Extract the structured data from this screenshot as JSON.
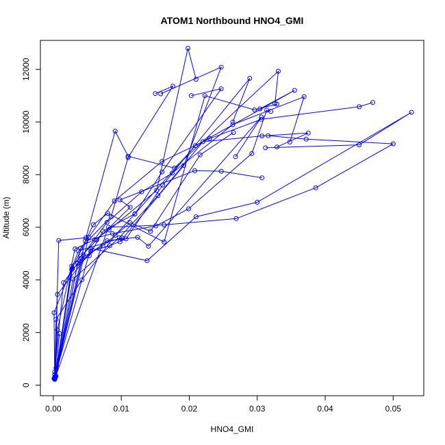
{
  "chart_data": {
    "type": "line",
    "title": "ATOM1 Northbound HNO4_GMI",
    "xlabel": "HNO4_GMI",
    "ylabel": "Altitude (m)",
    "xlim": [
      -0.0019,
      0.0545
    ],
    "ylim": [
      -400,
      13100
    ],
    "xticks": [
      0.0,
      0.01,
      0.02,
      0.03,
      0.04,
      0.05
    ],
    "xtick_labels": [
      "0.00",
      "0.01",
      "0.02",
      "0.03",
      "0.04",
      "0.05"
    ],
    "yticks": [
      0,
      2000,
      4000,
      6000,
      8000,
      10000,
      12000
    ],
    "ytick_labels": [
      "0",
      "2000",
      "4000",
      "6000",
      "8000",
      "10000",
      "12000"
    ],
    "grid": false,
    "legend": "none",
    "series_color": "#0000ff",
    "marker": "open-circle",
    "series": [
      {
        "x": [
          0.0003,
          0.0006,
          0.0032,
          0.0061,
          0.0082,
          0.0152,
          0.0198,
          0.021
        ],
        "y": [
          300,
          2100,
          5180,
          5530,
          5900,
          7400,
          12800,
          11620
        ]
      },
      {
        "x": [
          0.0002,
          0.0004,
          0.0042,
          0.0091,
          0.012,
          0.016,
          0.0247,
          0.0203
        ],
        "y": [
          280,
          2500,
          4000,
          5700,
          6500,
          8100,
          11260,
          11000
        ]
      },
      {
        "x": [
          0.0002,
          0.0001,
          0.0037,
          0.0101,
          0.0098,
          0.0192,
          0.0247,
          0.0158
        ],
        "y": [
          250,
          2750,
          5100,
          5600,
          5450,
          8350,
          12080,
          11070
        ]
      },
      {
        "x": [
          0.0003,
          0.0006,
          0.0055,
          0.0083,
          0.0107,
          0.0161,
          0.0289,
          0.0264
        ],
        "y": [
          300,
          3450,
          5080,
          5300,
          5560,
          7600,
          11660,
          10000
        ]
      },
      {
        "x": [
          0.0002,
          0.0008,
          0.0048,
          0.0091,
          0.011,
          0.0178,
          0.0331,
          0.0326
        ],
        "y": [
          240,
          5500,
          5600,
          9650,
          8700,
          8250,
          11930,
          10700
        ]
      },
      {
        "x": [
          0.0003,
          0.0028,
          0.0053,
          0.0073,
          0.012,
          0.0209,
          0.0355,
          0.0304
        ],
        "y": [
          310,
          4420,
          4920,
          5850,
          6510,
          9100,
          11200,
          10500
        ]
      },
      {
        "x": [
          0.0003,
          0.0044,
          0.0079,
          0.013,
          0.0175,
          0.0264,
          0.0369,
          0.0348
        ],
        "y": [
          290,
          4960,
          6190,
          7350,
          8060,
          9900,
          10960,
          9240
        ]
      },
      {
        "x": [
          0.0002,
          0.0052,
          0.009,
          0.016,
          0.023,
          0.0306,
          0.045,
          0.047
        ],
        "y": [
          260,
          5620,
          7000,
          8500,
          9370,
          10100,
          10580,
          10740
        ]
      },
      {
        "x": [
          0.0003,
          0.0029,
          0.0097,
          0.0154,
          0.022,
          0.0307,
          0.0375,
          0.0329
        ],
        "y": [
          330,
          4030,
          5600,
          7200,
          9250,
          9470,
          9580,
          9050
        ]
      },
      {
        "x": [
          0.0002,
          0.0055,
          0.0138,
          0.021,
          0.03,
          0.0527,
          0.045,
          0.0312
        ],
        "y": [
          300,
          5200,
          4730,
          6400,
          6950,
          10370,
          9130,
          9020
        ]
      },
      {
        "x": [
          0.0003,
          0.0081,
          0.0163,
          0.0269,
          0.0386,
          0.05,
          0.0372,
          0.0316
        ],
        "y": [
          290,
          6000,
          6090,
          6330,
          7500,
          9170,
          9350,
          9480
        ]
      },
      {
        "x": [
          0.0002,
          0.0047,
          0.0087,
          0.0151,
          0.0199,
          0.0292,
          0.0314,
          0.032
        ],
        "y": [
          270,
          5480,
          5760,
          6050,
          6700,
          8800,
          10450,
          10400
        ]
      },
      {
        "x": [
          0.0001,
          0.0015,
          0.0041,
          0.0073,
          0.0113,
          0.0143,
          0.0216,
          0.0265
        ],
        "y": [
          250,
          3900,
          4820,
          5300,
          6170,
          5850,
          8750,
          9600
        ]
      },
      {
        "x": [
          0.0003,
          0.0027,
          0.0064,
          0.0113,
          0.0098,
          0.0208,
          0.0247,
          0.0307
        ],
        "y": [
          320,
          4520,
          5520,
          6760,
          7040,
          8150,
          8130,
          7880
        ]
      },
      {
        "x": [
          0.0002,
          0.0002,
          0.0002,
          0.0004,
          0.0005,
          0.0009
        ],
        "y": [
          220,
          400,
          500,
          650,
          760,
          1960
        ]
      },
      {
        "x": [
          0.0004,
          0.004,
          0.0085,
          0.011,
          0.0176,
          0.015
        ],
        "y": [
          350,
          5200,
          6400,
          8650,
          11360,
          11080
        ]
      },
      {
        "x": [
          0.0003,
          0.0036,
          0.0079,
          0.0124,
          0.014,
          0.0306,
          0.0268
        ],
        "y": [
          300,
          4630,
          5490,
          5620,
          5280,
          10190,
          8680
        ]
      },
      {
        "x": [
          0.0003,
          0.0027,
          0.0059,
          0.008,
          0.0163,
          0.0223,
          0.0296,
          0.0329
        ],
        "y": [
          280,
          4400,
          6100,
          6530,
          5440,
          11000,
          10460,
          10680
        ]
      }
    ]
  }
}
